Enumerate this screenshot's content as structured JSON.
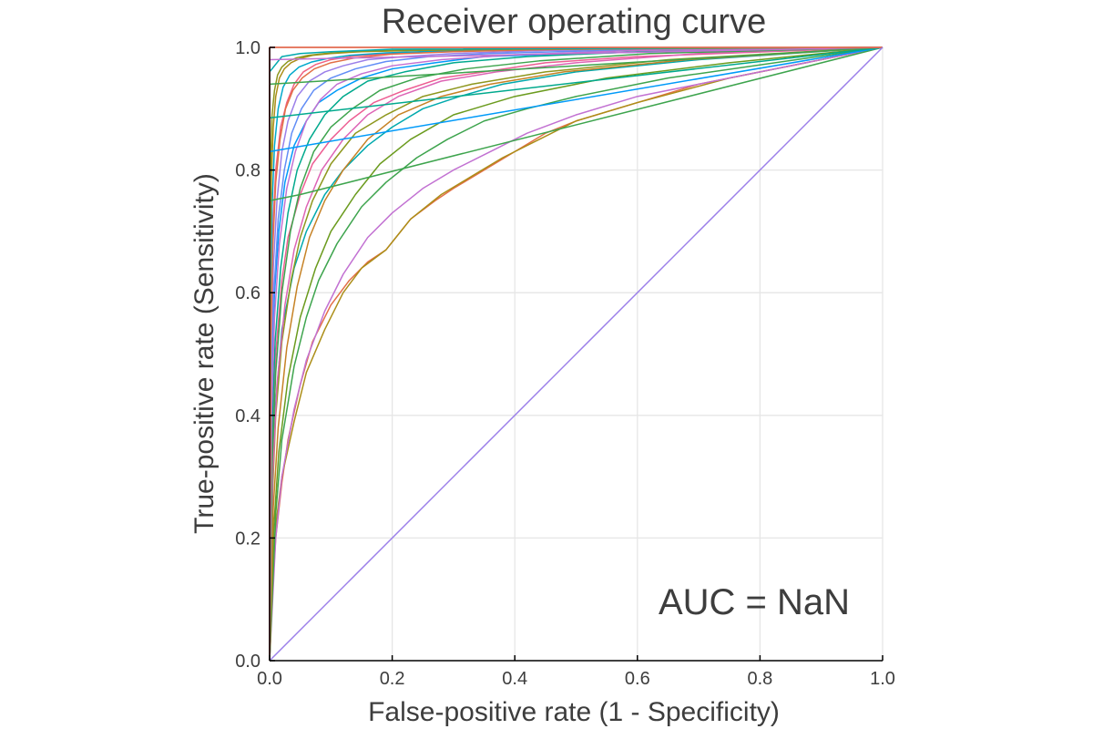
{
  "chart_data": {
    "type": "line",
    "title": "Receiver operating curve",
    "xlabel": "False-positive rate (1 - Specificity)",
    "ylabel": "True-positive rate (Sensitivity)",
    "xlim": [
      0,
      1
    ],
    "ylim": [
      0,
      1
    ],
    "x_ticks": [
      0.0,
      0.2,
      0.4,
      0.6,
      0.8,
      1.0
    ],
    "y_ticks": [
      0.0,
      0.2,
      0.4,
      0.6,
      0.8,
      1.0
    ],
    "x_tick_labels": [
      "0.0",
      "0.2",
      "0.4",
      "0.6",
      "0.8",
      "1.0"
    ],
    "y_tick_labels": [
      "0.0",
      "0.2",
      "0.4",
      "0.6",
      "0.8",
      "1.0"
    ],
    "grid": true,
    "legend": "none",
    "annotation": "AUC = NaN",
    "palette": [
      "#009af9",
      "#e26f46",
      "#3da44d",
      "#c271d2",
      "#ac8e18",
      "#00a9ad",
      "#ed5d92",
      "#c68225",
      "#00a98d",
      "#8e971e",
      "#00a8cb",
      "#9b7fe9",
      "#618df6",
      "#f06180",
      "#dd64b5",
      "#6b9b1e"
    ],
    "series": [
      {
        "color": "#e26f46",
        "x": [
          0,
          0.005,
          0.01,
          0.02,
          0.03,
          0.05,
          0.07,
          0.1,
          0.13,
          0.16,
          0.19,
          0.23,
          0.27,
          0.3,
          0.35,
          0.4,
          0.45,
          0.5,
          0.7,
          1.0
        ],
        "y": [
          0,
          0.12,
          0.2,
          0.29,
          0.36,
          0.45,
          0.52,
          0.58,
          0.62,
          0.65,
          0.67,
          0.72,
          0.75,
          0.77,
          0.8,
          0.83,
          0.86,
          0.88,
          0.94,
          1.0
        ]
      },
      {
        "color": "#ac8e18",
        "x": [
          0,
          0.005,
          0.01,
          0.02,
          0.04,
          0.06,
          0.09,
          0.12,
          0.15,
          0.19,
          0.23,
          0.28,
          0.33,
          0.38,
          0.44,
          0.5,
          0.6,
          0.75,
          1.0
        ],
        "y": [
          0,
          0.13,
          0.22,
          0.3,
          0.39,
          0.47,
          0.54,
          0.6,
          0.64,
          0.67,
          0.72,
          0.76,
          0.79,
          0.82,
          0.85,
          0.88,
          0.91,
          0.95,
          1.0
        ]
      },
      {
        "color": "#c271d2",
        "x": [
          0,
          0.01,
          0.02,
          0.04,
          0.06,
          0.09,
          0.12,
          0.16,
          0.2,
          0.25,
          0.3,
          0.36,
          0.42,
          0.5,
          0.6,
          0.8,
          1.0
        ],
        "y": [
          0,
          0.2,
          0.3,
          0.41,
          0.49,
          0.57,
          0.63,
          0.69,
          0.73,
          0.77,
          0.8,
          0.83,
          0.86,
          0.89,
          0.92,
          0.96,
          1.0
        ]
      },
      {
        "color": "#3da44d",
        "x": [
          0,
          0.01,
          0.02,
          0.04,
          0.06,
          0.08,
          0.11,
          0.15,
          0.19,
          0.24,
          0.29,
          0.35,
          0.42,
          0.5,
          0.65,
          1.0
        ],
        "y": [
          0,
          0.24,
          0.36,
          0.48,
          0.56,
          0.62,
          0.68,
          0.74,
          0.78,
          0.82,
          0.85,
          0.88,
          0.9,
          0.92,
          0.95,
          1.0
        ]
      },
      {
        "color": "#00a9ad",
        "x": [
          0,
          0.005,
          0.01,
          0.02,
          0.04,
          0.06,
          0.09,
          0.12,
          0.16,
          0.2,
          0.25,
          0.31,
          0.38,
          0.5,
          0.7,
          1.0
        ],
        "y": [
          0,
          0.3,
          0.42,
          0.54,
          0.64,
          0.7,
          0.76,
          0.8,
          0.84,
          0.87,
          0.9,
          0.92,
          0.94,
          0.96,
          0.98,
          1.0
        ]
      },
      {
        "color": "#ed5d92",
        "x": [
          0,
          0.005,
          0.01,
          0.02,
          0.03,
          0.05,
          0.07,
          0.1,
          0.13,
          0.17,
          0.22,
          0.28,
          0.35,
          0.45,
          0.6,
          1.0
        ],
        "y": [
          0,
          0.35,
          0.5,
          0.62,
          0.69,
          0.76,
          0.81,
          0.85,
          0.88,
          0.91,
          0.93,
          0.95,
          0.96,
          0.975,
          0.985,
          1.0
        ]
      },
      {
        "color": "#009af9",
        "x": [
          0,
          0.003,
          0.008,
          0.015,
          0.025,
          0.04,
          0.06,
          0.08,
          0.11,
          0.15,
          0.2,
          0.27,
          0.35,
          0.5,
          1.0
        ],
        "y": [
          0,
          0.45,
          0.6,
          0.7,
          0.78,
          0.84,
          0.88,
          0.91,
          0.93,
          0.95,
          0.965,
          0.975,
          0.985,
          0.99,
          1.0
        ]
      },
      {
        "color": "#8e971e",
        "x": [
          0,
          0.005,
          0.01,
          0.02,
          0.035,
          0.05,
          0.07,
          0.1,
          0.14,
          0.19,
          0.25,
          0.33,
          0.45,
          0.65,
          1.0
        ],
        "y": [
          0,
          0.28,
          0.4,
          0.52,
          0.62,
          0.69,
          0.75,
          0.81,
          0.86,
          0.89,
          0.92,
          0.94,
          0.96,
          0.98,
          1.0
        ]
      },
      {
        "color": "#9b7fe9",
        "x": [
          0,
          0.003,
          0.006,
          0.012,
          0.02,
          0.03,
          0.045,
          0.065,
          0.09,
          0.12,
          0.16,
          0.22,
          0.3,
          0.45,
          1.0
        ],
        "y": [
          0,
          0.5,
          0.64,
          0.75,
          0.83,
          0.88,
          0.92,
          0.945,
          0.96,
          0.97,
          0.98,
          0.985,
          0.99,
          0.995,
          1.0
        ]
      },
      {
        "color": "#dd64b5",
        "x": [
          0,
          0.005,
          0.012,
          0.025,
          0.04,
          0.06,
          0.085,
          0.12,
          0.16,
          0.21,
          0.28,
          0.37,
          0.5,
          0.7,
          1.0
        ],
        "y": [
          0,
          0.3,
          0.45,
          0.58,
          0.67,
          0.74,
          0.8,
          0.85,
          0.89,
          0.92,
          0.945,
          0.96,
          0.975,
          0.99,
          1.0
        ]
      },
      {
        "color": "#6b9b1e",
        "x": [
          0,
          0.007,
          0.015,
          0.03,
          0.05,
          0.075,
          0.1,
          0.14,
          0.18,
          0.23,
          0.3,
          0.4,
          0.55,
          0.75,
          1.0
        ],
        "y": [
          0,
          0.22,
          0.34,
          0.46,
          0.56,
          0.64,
          0.7,
          0.76,
          0.81,
          0.85,
          0.89,
          0.92,
          0.95,
          0.975,
          1.0
        ]
      },
      {
        "color": "#00a98d",
        "x": [
          0,
          0.004,
          0.009,
          0.018,
          0.03,
          0.045,
          0.065,
          0.09,
          0.12,
          0.16,
          0.22,
          0.3,
          0.42,
          0.6,
          1.0
        ],
        "y": [
          0,
          0.38,
          0.52,
          0.64,
          0.73,
          0.8,
          0.85,
          0.89,
          0.92,
          0.945,
          0.96,
          0.975,
          0.985,
          0.993,
          1.0
        ]
      },
      {
        "color": "#f06180",
        "x": [
          0,
          0.002,
          0.005,
          0.01,
          0.018,
          0.028,
          0.04,
          0.055,
          0.075,
          0.1,
          0.14,
          0.2,
          0.3,
          0.5,
          1.0
        ],
        "y": [
          0,
          0.55,
          0.7,
          0.8,
          0.87,
          0.91,
          0.94,
          0.96,
          0.972,
          0.98,
          0.986,
          0.99,
          0.994,
          0.997,
          1.0
        ]
      },
      {
        "color": "#c68225",
        "x": [
          0,
          0.006,
          0.014,
          0.028,
          0.045,
          0.065,
          0.09,
          0.12,
          0.16,
          0.21,
          0.28,
          0.36,
          0.48,
          0.68,
          1.0
        ],
        "y": [
          0,
          0.25,
          0.38,
          0.51,
          0.61,
          0.69,
          0.75,
          0.8,
          0.85,
          0.89,
          0.92,
          0.94,
          0.96,
          0.98,
          1.0
        ]
      },
      {
        "color": "#00a8cb",
        "x": [
          0,
          0.002,
          0.004,
          0.008,
          0.014,
          0.022,
          0.033,
          0.048,
          0.068,
          0.095,
          0.13,
          0.19,
          0.28,
          0.45,
          1.0
        ],
        "y": [
          0,
          0.6,
          0.74,
          0.84,
          0.9,
          0.935,
          0.955,
          0.968,
          0.976,
          0.982,
          0.987,
          0.991,
          0.994,
          0.997,
          1.0
        ]
      },
      {
        "color": "#618df6",
        "x": [
          0,
          0.003,
          0.007,
          0.014,
          0.024,
          0.036,
          0.052,
          0.072,
          0.1,
          0.14,
          0.19,
          0.26,
          0.36,
          0.55,
          1.0
        ],
        "y": [
          0,
          0.45,
          0.6,
          0.72,
          0.8,
          0.86,
          0.9,
          0.93,
          0.95,
          0.965,
          0.977,
          0.985,
          0.99,
          0.995,
          1.0
        ]
      },
      {
        "color": "#3da44d",
        "x": [
          0,
          0.004,
          0.01,
          0.02,
          0.034,
          0.05,
          0.072,
          0.1,
          0.135,
          0.18,
          0.24,
          0.32,
          0.44,
          0.62,
          1.0
        ],
        "y": [
          0,
          0.32,
          0.47,
          0.6,
          0.7,
          0.77,
          0.83,
          0.87,
          0.9,
          0.93,
          0.95,
          0.965,
          0.978,
          0.99,
          1.0
        ]
      },
      {
        "color": "#c271d2",
        "x": [
          0,
          0.003,
          0.008,
          0.016,
          0.028,
          0.042,
          0.06,
          0.083,
          0.11,
          0.15,
          0.2,
          0.28,
          0.4,
          0.6,
          1.0
        ],
        "y": [
          0,
          0.4,
          0.56,
          0.68,
          0.77,
          0.83,
          0.88,
          0.915,
          0.94,
          0.957,
          0.97,
          0.98,
          0.988,
          0.995,
          1.0
        ]
      },
      {
        "color": "#e26f46",
        "x": [
          0,
          0.002,
          0.005,
          0.01,
          0.017,
          0.026,
          0.038,
          0.053,
          0.073,
          0.1,
          0.14,
          0.2,
          0.3,
          0.48,
          1.0
        ],
        "y": [
          0,
          0.52,
          0.67,
          0.78,
          0.85,
          0.9,
          0.93,
          0.95,
          0.965,
          0.975,
          0.983,
          0.989,
          0.993,
          0.997,
          1.0
        ]
      },
      {
        "color": "#ac8e18",
        "x": [
          0,
          0.001,
          0.003,
          0.006,
          0.01,
          0.016,
          0.024,
          0.035,
          0.05,
          0.07,
          0.1,
          0.15,
          0.24,
          0.4,
          1.0
        ],
        "y": [
          0,
          0.65,
          0.79,
          0.87,
          0.92,
          0.95,
          0.965,
          0.975,
          0.982,
          0.987,
          0.99,
          0.993,
          0.995,
          0.997,
          1.0
        ]
      },
      {
        "color": "#8e971e",
        "x": [
          0,
          0.0,
          0.002,
          0.004,
          0.008,
          0.013,
          0.02,
          0.03,
          0.044,
          0.063,
          0.09,
          0.13,
          0.2,
          0.35,
          1.0
        ],
        "y": [
          0,
          0.7,
          0.82,
          0.89,
          0.93,
          0.955,
          0.968,
          0.977,
          0.983,
          0.987,
          0.99,
          0.993,
          0.995,
          0.997,
          1.0
        ]
      },
      {
        "color": "#00a9ad",
        "x": [
          0,
          0.0,
          0.0,
          0.0,
          0.02,
          0.05,
          0.1,
          0.15,
          0.2,
          1.0
        ],
        "y": [
          0,
          0.4,
          0.75,
          0.96,
          0.985,
          0.99,
          0.993,
          0.995,
          0.997,
          1.0
        ]
      },
      {
        "color": "#3da44d",
        "x": [
          0,
          0.0,
          0.0,
          0.05,
          1.0
        ],
        "y": [
          0,
          0.5,
          0.75,
          0.76,
          1.0
        ]
      },
      {
        "color": "#009af9",
        "x": [
          0,
          0.0,
          0.0,
          1.0
        ],
        "y": [
          0,
          0.6,
          0.83,
          1.0
        ]
      },
      {
        "color": "#00a98d",
        "x": [
          0,
          0.0,
          0.0,
          1.0
        ],
        "y": [
          0,
          0.65,
          0.885,
          1.0
        ]
      },
      {
        "color": "#3da44d",
        "x": [
          0,
          0.0,
          0.0,
          1.0
        ],
        "y": [
          0,
          0.7,
          0.94,
          1.0
        ]
      },
      {
        "color": "#c271d2",
        "x": [
          0,
          0.0,
          0.0,
          1.0
        ],
        "y": [
          0,
          0.75,
          0.98,
          1.0
        ]
      },
      {
        "color": "#ed5d92",
        "x": [
          0,
          0.0,
          0.0,
          1.0
        ],
        "y": [
          0,
          0.8,
          1.0,
          1.0
        ]
      },
      {
        "color": "#e26f46",
        "x": [
          0,
          0.0,
          0.0,
          1.0
        ],
        "y": [
          0,
          0.9,
          1.0,
          1.0
        ]
      },
      {
        "color": "#9b7fe9",
        "x": [
          0,
          1.0
        ],
        "y": [
          0,
          1.0
        ]
      }
    ]
  }
}
